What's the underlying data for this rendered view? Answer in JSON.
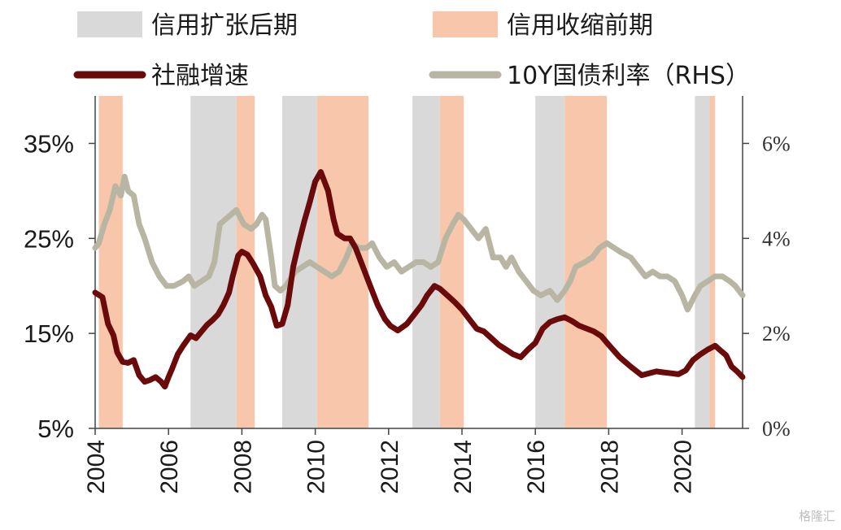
{
  "colors": {
    "expansion_late": "#d9d9d9",
    "contraction_early": "#f7c6ab",
    "tsf_growth": "#6b0a0a",
    "yield_10y": "#b8b6a3",
    "axis": "#444444"
  },
  "legend": {
    "expansion_late": "信用扩张后期",
    "contraction_early": "信用收缩前期",
    "tsf_growth": "社融增速",
    "yield_10y": "10Y国债利率（RHS）"
  },
  "watermark": "格隆汇",
  "chart_data": {
    "type": "line",
    "x_range": [
      2004.0,
      2021.65
    ],
    "y_left": {
      "range": [
        0.05,
        0.4
      ],
      "ticks": [
        "5%",
        "15%",
        "25%",
        "35%"
      ],
      "tick_values": [
        0.05,
        0.15,
        0.25,
        0.35
      ]
    },
    "y_right": {
      "range": [
        0.0,
        0.07
      ],
      "ticks": [
        "0%",
        "2%",
        "4%",
        "6%"
      ],
      "tick_values": [
        0.0,
        0.02,
        0.04,
        0.06
      ]
    },
    "x_ticks": [
      "2004",
      "2006",
      "2008",
      "2010",
      "2012",
      "2014",
      "2016",
      "2018",
      "2020"
    ],
    "x_tick_values": [
      2004,
      2006,
      2008,
      2010,
      2012,
      2014,
      2016,
      2018,
      2020
    ],
    "legend_position": "top",
    "shaded_regions": [
      {
        "type": "contraction_early",
        "start": 2004.1,
        "end": 2004.75
      },
      {
        "type": "expansion_late",
        "start": 2006.6,
        "end": 2007.85
      },
      {
        "type": "contraction_early",
        "start": 2007.85,
        "end": 2008.35
      },
      {
        "type": "expansion_late",
        "start": 2009.1,
        "end": 2010.05
      },
      {
        "type": "contraction_early",
        "start": 2010.05,
        "end": 2011.45
      },
      {
        "type": "expansion_late",
        "start": 2012.65,
        "end": 2013.4
      },
      {
        "type": "contraction_early",
        "start": 2013.4,
        "end": 2014.05
      },
      {
        "type": "expansion_late",
        "start": 2016.0,
        "end": 2016.8
      },
      {
        "type": "contraction_early",
        "start": 2016.8,
        "end": 2017.95
      },
      {
        "type": "expansion_late",
        "start": 2020.35,
        "end": 2020.75
      },
      {
        "type": "contraction_early",
        "start": 2020.75,
        "end": 2020.9
      }
    ],
    "series": [
      {
        "name": "社融增速",
        "axis": "left",
        "points": [
          [
            2004.0,
            0.193
          ],
          [
            2004.2,
            0.188
          ],
          [
            2004.35,
            0.16
          ],
          [
            2004.5,
            0.148
          ],
          [
            2004.6,
            0.13
          ],
          [
            2004.75,
            0.12
          ],
          [
            2004.9,
            0.119
          ],
          [
            2005.05,
            0.122
          ],
          [
            2005.2,
            0.106
          ],
          [
            2005.35,
            0.099
          ],
          [
            2005.5,
            0.101
          ],
          [
            2005.65,
            0.104
          ],
          [
            2005.8,
            0.099
          ],
          [
            2005.9,
            0.094
          ],
          [
            2006.0,
            0.104
          ],
          [
            2006.1,
            0.113
          ],
          [
            2006.25,
            0.128
          ],
          [
            2006.4,
            0.137
          ],
          [
            2006.6,
            0.148
          ],
          [
            2006.75,
            0.145
          ],
          [
            2006.9,
            0.152
          ],
          [
            2007.05,
            0.159
          ],
          [
            2007.2,
            0.164
          ],
          [
            2007.35,
            0.17
          ],
          [
            2007.5,
            0.18
          ],
          [
            2007.65,
            0.193
          ],
          [
            2007.75,
            0.21
          ],
          [
            2007.9,
            0.232
          ],
          [
            2008.0,
            0.236
          ],
          [
            2008.15,
            0.233
          ],
          [
            2008.3,
            0.224
          ],
          [
            2008.5,
            0.21
          ],
          [
            2008.65,
            0.19
          ],
          [
            2008.8,
            0.178
          ],
          [
            2008.95,
            0.158
          ],
          [
            2009.1,
            0.16
          ],
          [
            2009.25,
            0.18
          ],
          [
            2009.4,
            0.22
          ],
          [
            2009.55,
            0.245
          ],
          [
            2009.7,
            0.268
          ],
          [
            2009.85,
            0.288
          ],
          [
            2010.0,
            0.31
          ],
          [
            2010.15,
            0.32
          ],
          [
            2010.25,
            0.31
          ],
          [
            2010.35,
            0.3
          ],
          [
            2010.5,
            0.27
          ],
          [
            2010.6,
            0.255
          ],
          [
            2010.8,
            0.25
          ],
          [
            2010.95,
            0.25
          ],
          [
            2011.1,
            0.24
          ],
          [
            2011.3,
            0.22
          ],
          [
            2011.5,
            0.2
          ],
          [
            2011.7,
            0.18
          ],
          [
            2011.9,
            0.165
          ],
          [
            2012.05,
            0.158
          ],
          [
            2012.25,
            0.153
          ],
          [
            2012.5,
            0.16
          ],
          [
            2012.7,
            0.17
          ],
          [
            2012.9,
            0.18
          ],
          [
            2013.05,
            0.19
          ],
          [
            2013.25,
            0.2
          ],
          [
            2013.4,
            0.197
          ],
          [
            2013.6,
            0.19
          ],
          [
            2013.8,
            0.183
          ],
          [
            2014.0,
            0.175
          ],
          [
            2014.2,
            0.165
          ],
          [
            2014.4,
            0.155
          ],
          [
            2014.6,
            0.152
          ],
          [
            2014.8,
            0.145
          ],
          [
            2015.0,
            0.138
          ],
          [
            2015.2,
            0.133
          ],
          [
            2015.4,
            0.128
          ],
          [
            2015.6,
            0.125
          ],
          [
            2015.8,
            0.133
          ],
          [
            2016.0,
            0.14
          ],
          [
            2016.2,
            0.155
          ],
          [
            2016.4,
            0.162
          ],
          [
            2016.6,
            0.165
          ],
          [
            2016.8,
            0.167
          ],
          [
            2017.0,
            0.163
          ],
          [
            2017.2,
            0.158
          ],
          [
            2017.4,
            0.155
          ],
          [
            2017.6,
            0.152
          ],
          [
            2017.8,
            0.147
          ],
          [
            2018.0,
            0.138
          ],
          [
            2018.3,
            0.125
          ],
          [
            2018.6,
            0.115
          ],
          [
            2018.9,
            0.106
          ],
          [
            2019.1,
            0.108
          ],
          [
            2019.3,
            0.11
          ],
          [
            2019.5,
            0.109
          ],
          [
            2019.7,
            0.108
          ],
          [
            2019.9,
            0.107
          ],
          [
            2020.1,
            0.111
          ],
          [
            2020.3,
            0.122
          ],
          [
            2020.5,
            0.128
          ],
          [
            2020.7,
            0.133
          ],
          [
            2020.9,
            0.137
          ],
          [
            2021.05,
            0.132
          ],
          [
            2021.2,
            0.127
          ],
          [
            2021.35,
            0.115
          ],
          [
            2021.5,
            0.11
          ],
          [
            2021.65,
            0.104
          ]
        ]
      },
      {
        "name": "10Y国债利率（RHS）",
        "axis": "right",
        "points": [
          [
            2004.0,
            0.038
          ],
          [
            2004.1,
            0.039
          ],
          [
            2004.25,
            0.043
          ],
          [
            2004.4,
            0.046
          ],
          [
            2004.55,
            0.051
          ],
          [
            2004.7,
            0.049
          ],
          [
            2004.8,
            0.053
          ],
          [
            2004.9,
            0.05
          ],
          [
            2005.05,
            0.049
          ],
          [
            2005.2,
            0.043
          ],
          [
            2005.35,
            0.04
          ],
          [
            2005.55,
            0.035
          ],
          [
            2005.75,
            0.032
          ],
          [
            2005.95,
            0.03
          ],
          [
            2006.15,
            0.03
          ],
          [
            2006.4,
            0.031
          ],
          [
            2006.55,
            0.032
          ],
          [
            2006.7,
            0.03
          ],
          [
            2006.9,
            0.031
          ],
          [
            2007.1,
            0.032
          ],
          [
            2007.25,
            0.035
          ],
          [
            2007.4,
            0.043
          ],
          [
            2007.55,
            0.044
          ],
          [
            2007.7,
            0.045
          ],
          [
            2007.85,
            0.046
          ],
          [
            2008.05,
            0.043
          ],
          [
            2008.25,
            0.042
          ],
          [
            2008.4,
            0.043
          ],
          [
            2008.55,
            0.045
          ],
          [
            2008.65,
            0.044
          ],
          [
            2008.8,
            0.036
          ],
          [
            2008.9,
            0.03
          ],
          [
            2009.05,
            0.029
          ],
          [
            2009.2,
            0.03
          ],
          [
            2009.45,
            0.033
          ],
          [
            2009.65,
            0.034
          ],
          [
            2009.85,
            0.035
          ],
          [
            2010.05,
            0.034
          ],
          [
            2010.25,
            0.033
          ],
          [
            2010.45,
            0.032
          ],
          [
            2010.65,
            0.033
          ],
          [
            2010.85,
            0.036
          ],
          [
            2011.0,
            0.039
          ],
          [
            2011.2,
            0.038
          ],
          [
            2011.4,
            0.038
          ],
          [
            2011.55,
            0.039
          ],
          [
            2011.75,
            0.036
          ],
          [
            2011.95,
            0.034
          ],
          [
            2012.15,
            0.035
          ],
          [
            2012.35,
            0.033
          ],
          [
            2012.55,
            0.034
          ],
          [
            2012.75,
            0.035
          ],
          [
            2012.95,
            0.035
          ],
          [
            2013.15,
            0.034
          ],
          [
            2013.35,
            0.035
          ],
          [
            2013.55,
            0.04
          ],
          [
            2013.75,
            0.043
          ],
          [
            2013.9,
            0.045
          ],
          [
            2014.05,
            0.044
          ],
          [
            2014.25,
            0.042
          ],
          [
            2014.45,
            0.04
          ],
          [
            2014.65,
            0.042
          ],
          [
            2014.85,
            0.036
          ],
          [
            2015.05,
            0.036
          ],
          [
            2015.2,
            0.034
          ],
          [
            2015.35,
            0.036
          ],
          [
            2015.55,
            0.033
          ],
          [
            2015.75,
            0.031
          ],
          [
            2015.95,
            0.029
          ],
          [
            2016.15,
            0.028
          ],
          [
            2016.4,
            0.029
          ],
          [
            2016.6,
            0.027
          ],
          [
            2016.8,
            0.029
          ],
          [
            2016.95,
            0.031
          ],
          [
            2017.1,
            0.034
          ],
          [
            2017.35,
            0.035
          ],
          [
            2017.55,
            0.036
          ],
          [
            2017.75,
            0.038
          ],
          [
            2017.95,
            0.039
          ],
          [
            2018.15,
            0.038
          ],
          [
            2018.35,
            0.037
          ],
          [
            2018.6,
            0.036
          ],
          [
            2018.8,
            0.034
          ],
          [
            2019.0,
            0.032
          ],
          [
            2019.2,
            0.033
          ],
          [
            2019.4,
            0.032
          ],
          [
            2019.6,
            0.032
          ],
          [
            2019.8,
            0.031
          ],
          [
            2020.0,
            0.028
          ],
          [
            2020.15,
            0.025
          ],
          [
            2020.35,
            0.028
          ],
          [
            2020.5,
            0.03
          ],
          [
            2020.7,
            0.031
          ],
          [
            2020.9,
            0.032
          ],
          [
            2021.1,
            0.032
          ],
          [
            2021.3,
            0.031
          ],
          [
            2021.45,
            0.03
          ],
          [
            2021.65,
            0.028
          ]
        ]
      }
    ]
  }
}
